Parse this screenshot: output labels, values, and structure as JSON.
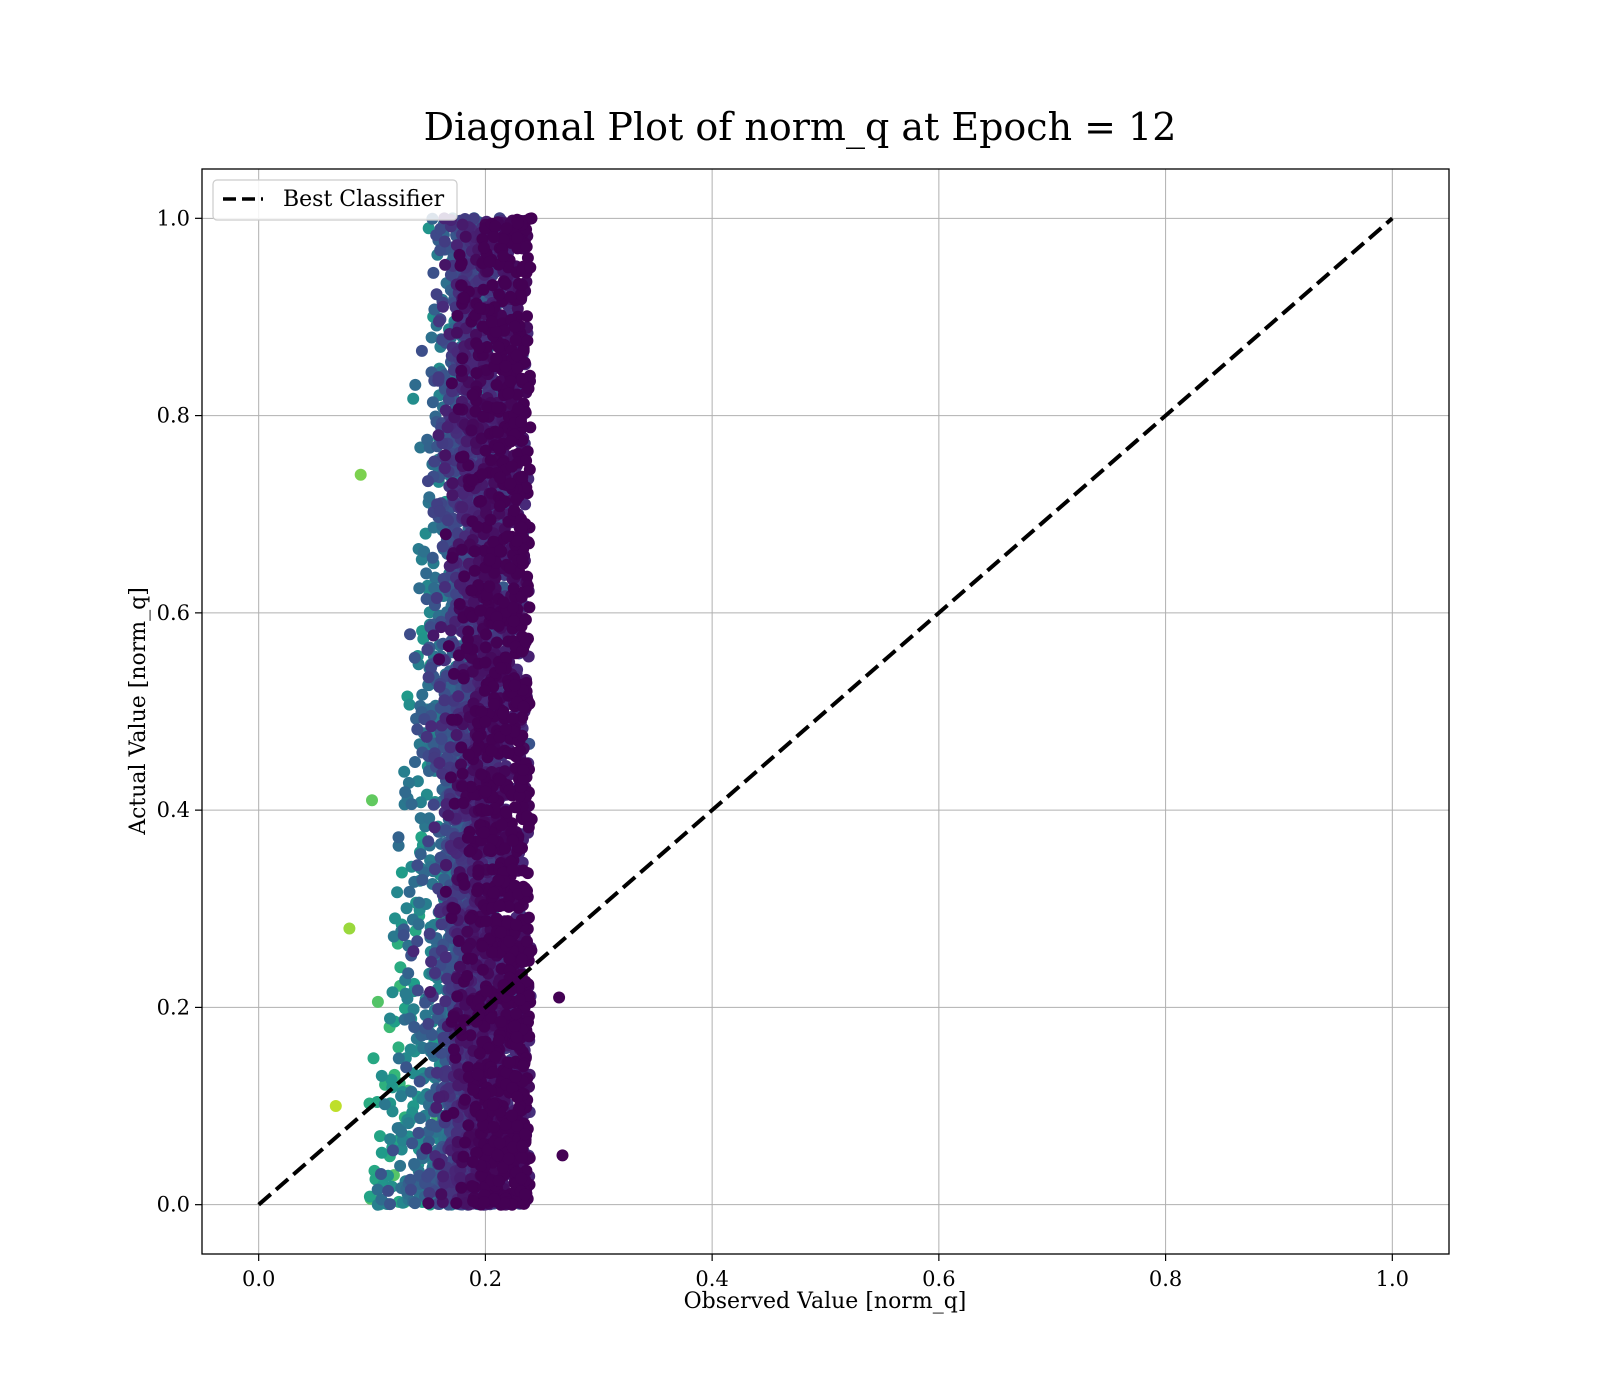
{
  "chart_data": {
    "type": "scatter",
    "title": "Diagonal Plot of norm_q at Epoch = 12",
    "xlabel": "Observed Value [norm_q]",
    "ylabel": "Actual Value [norm_q]",
    "xlim": [
      -0.05,
      1.05
    ],
    "ylim": [
      -0.05,
      1.05
    ],
    "xticks": [
      "0.0",
      "0.2",
      "0.4",
      "0.6",
      "0.8",
      "1.0"
    ],
    "yticks": [
      "0.0",
      "0.2",
      "0.4",
      "0.6",
      "0.8",
      "1.0"
    ],
    "grid": true,
    "legend": {
      "position": "top-left",
      "entries": [
        "Best Classifier"
      ]
    },
    "colormap": "viridis",
    "series": [
      {
        "name": "Best Classifier",
        "kind": "line",
        "style": "dashed",
        "color": "#000000",
        "x": [
          0.0,
          1.0
        ],
        "y": [
          0.0,
          1.0
        ]
      },
      {
        "kind": "scatter",
        "description_of_distribution": "dense vertical band of points",
        "x_range": [
          0.07,
          0.27
        ],
        "x_center": 0.2,
        "y_range": [
          0.0,
          1.0
        ],
        "sample_points": [
          {
            "x": 0.09,
            "y": 0.74
          },
          {
            "x": 0.1,
            "y": 0.41
          },
          {
            "x": 0.265,
            "y": 0.21
          },
          {
            "x": 0.268,
            "y": 0.05
          },
          {
            "x": 0.068,
            "y": 0.1
          },
          {
            "x": 0.15,
            "y": 0.99
          },
          {
            "x": 0.19,
            "y": 1.0
          },
          {
            "x": 0.2,
            "y": 0.5
          },
          {
            "x": 0.235,
            "y": 0.71
          },
          {
            "x": 0.08,
            "y": 0.28
          }
        ]
      }
    ]
  }
}
